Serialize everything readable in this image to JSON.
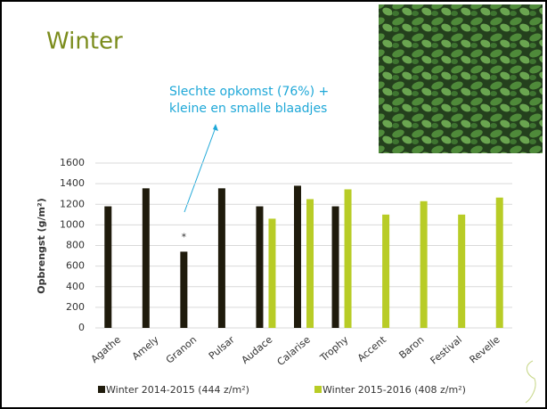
{
  "chart_data": {
    "type": "bar",
    "title": "Winter",
    "annotation": [
      "Slechte opkomst (76%) +",
      "kleine en smalle blaadjes"
    ],
    "marker_annotation": "*",
    "ylabel": "Opbrengst (g/m²)",
    "categories": [
      "Agathe",
      "Amely",
      "Granon",
      "Pulsar",
      "Audace",
      "Calarise",
      "Trophy",
      "Accent",
      "Baron",
      "Festival",
      "Revelle"
    ],
    "series": [
      {
        "name": "Winter 2014-2015 (444 z/m²)",
        "color": "#1f1b0c",
        "values": [
          1180,
          1355,
          740,
          1355,
          1180,
          1380,
          1180,
          null,
          null,
          null,
          null
        ]
      },
      {
        "name": "Winter 2015-2016 (408 z/m²)",
        "color": "#b8cc26",
        "values": [
          null,
          null,
          null,
          null,
          1060,
          1250,
          1345,
          1100,
          1230,
          1100,
          1265
        ]
      }
    ],
    "ylim": [
      0,
      1600
    ],
    "yticks": [
      0,
      200,
      400,
      600,
      800,
      1000,
      1200,
      1400,
      1600
    ],
    "grid": true
  }
}
